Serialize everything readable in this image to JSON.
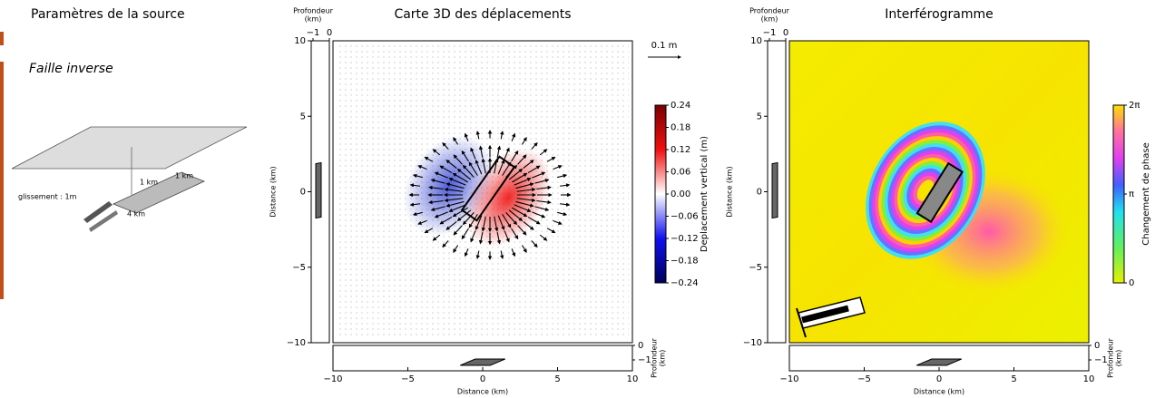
{
  "source_panel": {
    "title": "Paramètres de la source",
    "fault_type": "Faille inverse",
    "slip_label": "glissement : 1m",
    "dims": [
      "1 km",
      "1 km",
      "4 km"
    ]
  },
  "chart_data": [
    {
      "type": "quiver",
      "title": "Carte 3D des déplacements",
      "x_label": "Distance (km)",
      "y_label": "Distance (km)",
      "xlim": [
        -10,
        10
      ],
      "ylim": [
        -10,
        10
      ],
      "xticks": [
        {
          "value": -10,
          "label": "−10"
        },
        {
          "value": -5,
          "label": "−5"
        },
        0,
        5,
        10
      ],
      "yticks": [
        {
          "value": -10,
          "label": "−10"
        },
        {
          "value": -5,
          "label": "−5"
        },
        0,
        5,
        10
      ],
      "depth_label": [
        "Profondeur",
        "(km)"
      ],
      "depth_ticks": [
        {
          "value": -1,
          "label": "−1"
        },
        0
      ],
      "scale_label": "0.1 m",
      "colorbar_label": "Deplacement vertical (m)",
      "clim": [
        -0.24,
        0.24
      ],
      "colorbar_ticks": [
        0.24,
        0.18,
        0.12,
        0.06,
        {
          "value": 0,
          "label": "0.00"
        },
        {
          "value": -0.06,
          "label": "−0.06"
        },
        {
          "value": -0.12,
          "label": "−0.12"
        },
        {
          "value": -0.18,
          "label": "−0.18"
        },
        {
          "value": -0.24,
          "label": "−0.24"
        }
      ]
    },
    {
      "type": "interferogram",
      "title": "Interférogramme",
      "x_label": "Distance (km)",
      "y_label": "Distance (km)",
      "xlim": [
        -10,
        10
      ],
      "ylim": [
        -10,
        10
      ],
      "xticks": [
        {
          "value": -10,
          "label": "−10"
        },
        {
          "value": -5,
          "label": "−5"
        },
        0,
        5,
        10
      ],
      "yticks": [
        {
          "value": -10,
          "label": "−10"
        },
        {
          "value": -5,
          "label": "−5"
        },
        0,
        5,
        10
      ],
      "depth_label": [
        "Profondeur",
        "(km)"
      ],
      "depth_ticks": [
        {
          "value": -1,
          "label": "−1"
        },
        0
      ],
      "colorbar_label": "Changement de phase",
      "clim": [
        0,
        6.2832
      ],
      "colorbar_ticks": [
        0,
        {
          "value": 3.1416,
          "label": "π"
        },
        {
          "value": 6.2832,
          "label": "2π"
        }
      ]
    }
  ]
}
